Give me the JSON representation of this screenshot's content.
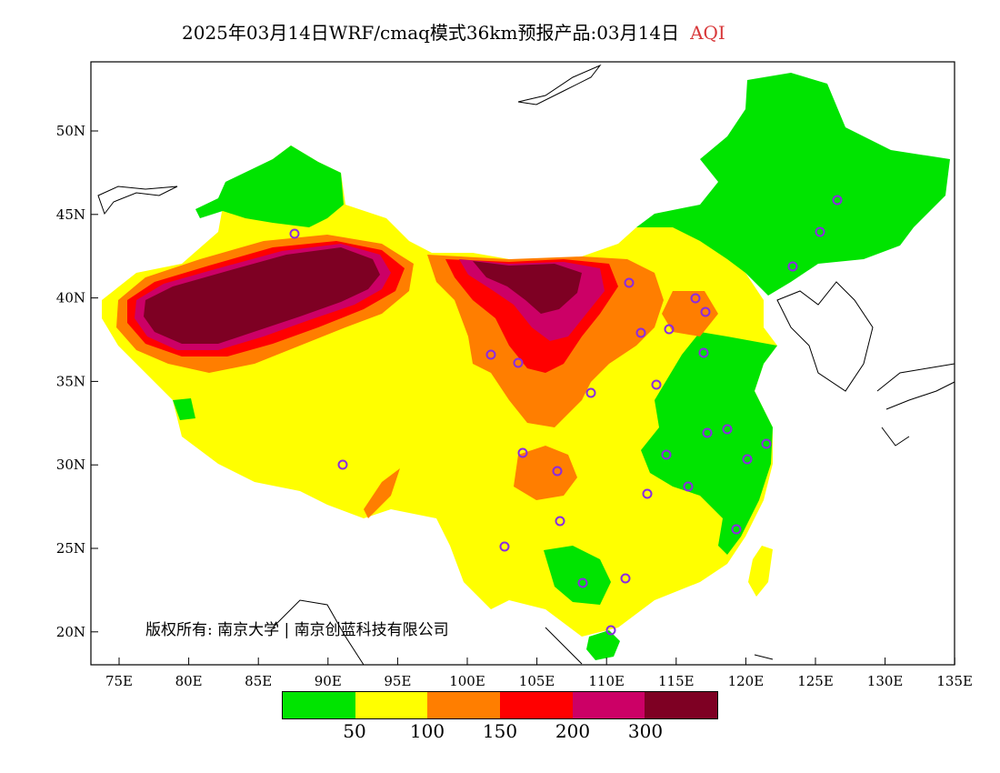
{
  "title": {
    "main": "2025年03月14日WRF/cmaq模式36km预报产品:03月14日",
    "product": "AQI"
  },
  "map": {
    "lat_labels": [
      "50N",
      "45N",
      "40N",
      "35N",
      "30N",
      "25N",
      "20N"
    ],
    "lon_labels": [
      "75E",
      "80E",
      "85E",
      "90E",
      "95E",
      "100E",
      "105E",
      "110E",
      "115E",
      "120E",
      "125E",
      "130E",
      "135E"
    ],
    "copyright": "版权所有: 南京大学 | 南京创蓝科技有限公司"
  },
  "legend": {
    "colors": [
      "#00e400",
      "#ffff00",
      "#ff7e00",
      "#ff0000",
      "#cc0066",
      "#7e0023"
    ],
    "labels": [
      "50",
      "100",
      "150",
      "200",
      "300"
    ]
  },
  "colors": {
    "good": "#00e400",
    "moderate": "#ffff00",
    "usg": "#ff7e00",
    "unhealthy": "#ff0000",
    "very_unhealthy": "#cc0066",
    "hazardous": "#7e0023",
    "station_marker": "#8a2be2"
  }
}
